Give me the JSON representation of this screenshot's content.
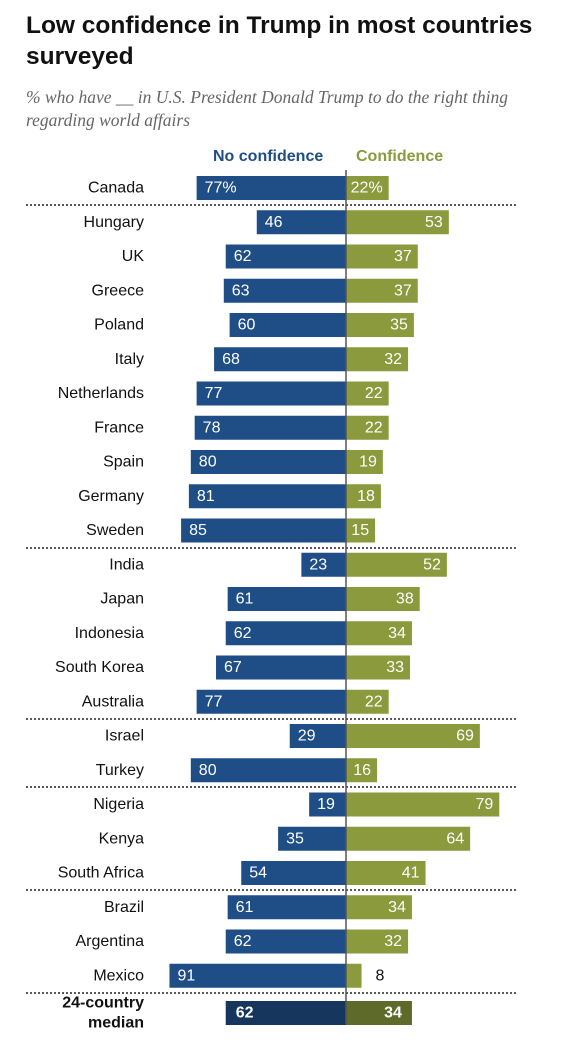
{
  "title": "Low confidence in Trump in most countries surveyed",
  "subtitle": "% who have __ in U.S. President Donald Trump to do the right thing regarding world affairs",
  "colors": {
    "no_confidence": "#1f4e87",
    "confidence": "#8a9a3c",
    "no_confidence_median": "#17365e",
    "confidence_median": "#5e6a2a"
  },
  "chart_data": {
    "type": "bar",
    "orientation": "horizontal-diverging",
    "title": "Low confidence in Trump in most countries surveyed",
    "subtitle": "% who have __ in U.S. President Donald Trump to do the right thing regarding world affairs",
    "series": [
      {
        "name": "No confidence",
        "color": "#1f4e87"
      },
      {
        "name": "Confidence",
        "color": "#8a9a3c"
      }
    ],
    "rows": [
      {
        "country": "Canada",
        "no": 77,
        "yes": 22,
        "no_label": "77%",
        "yes_label": "22%",
        "group_end": true
      },
      {
        "country": "Hungary",
        "no": 46,
        "yes": 53,
        "no_label": "46",
        "yes_label": "53"
      },
      {
        "country": "UK",
        "no": 62,
        "yes": 37,
        "no_label": "62",
        "yes_label": "37"
      },
      {
        "country": "Greece",
        "no": 63,
        "yes": 37,
        "no_label": "63",
        "yes_label": "37"
      },
      {
        "country": "Poland",
        "no": 60,
        "yes": 35,
        "no_label": "60",
        "yes_label": "35"
      },
      {
        "country": "Italy",
        "no": 68,
        "yes": 32,
        "no_label": "68",
        "yes_label": "32"
      },
      {
        "country": "Netherlands",
        "no": 77,
        "yes": 22,
        "no_label": "77",
        "yes_label": "22"
      },
      {
        "country": "France",
        "no": 78,
        "yes": 22,
        "no_label": "78",
        "yes_label": "22"
      },
      {
        "country": "Spain",
        "no": 80,
        "yes": 19,
        "no_label": "80",
        "yes_label": "19"
      },
      {
        "country": "Germany",
        "no": 81,
        "yes": 18,
        "no_label": "81",
        "yes_label": "18"
      },
      {
        "country": "Sweden",
        "no": 85,
        "yes": 15,
        "no_label": "85",
        "yes_label": "15",
        "group_end": true
      },
      {
        "country": "India",
        "no": 23,
        "yes": 52,
        "no_label": "23",
        "yes_label": "52"
      },
      {
        "country": "Japan",
        "no": 61,
        "yes": 38,
        "no_label": "61",
        "yes_label": "38"
      },
      {
        "country": "Indonesia",
        "no": 62,
        "yes": 34,
        "no_label": "62",
        "yes_label": "34"
      },
      {
        "country": "South Korea",
        "no": 67,
        "yes": 33,
        "no_label": "67",
        "yes_label": "33"
      },
      {
        "country": "Australia",
        "no": 77,
        "yes": 22,
        "no_label": "77",
        "yes_label": "22",
        "group_end": true
      },
      {
        "country": "Israel",
        "no": 29,
        "yes": 69,
        "no_label": "29",
        "yes_label": "69"
      },
      {
        "country": "Turkey",
        "no": 80,
        "yes": 16,
        "no_label": "80",
        "yes_label": "16",
        "group_end": true
      },
      {
        "country": "Nigeria",
        "no": 19,
        "yes": 79,
        "no_label": "19",
        "yes_label": "79"
      },
      {
        "country": "Kenya",
        "no": 35,
        "yes": 64,
        "no_label": "35",
        "yes_label": "64"
      },
      {
        "country": "South Africa",
        "no": 54,
        "yes": 41,
        "no_label": "54",
        "yes_label": "41",
        "group_end": true
      },
      {
        "country": "Brazil",
        "no": 61,
        "yes": 34,
        "no_label": "61",
        "yes_label": "34"
      },
      {
        "country": "Argentina",
        "no": 62,
        "yes": 32,
        "no_label": "62",
        "yes_label": "32"
      },
      {
        "country": "Mexico",
        "no": 91,
        "yes": 8,
        "no_label": "91",
        "yes_label": "8",
        "group_end": true
      }
    ],
    "median": {
      "country_line1": "24-country",
      "country_line2": "median",
      "no": 62,
      "yes": 34,
      "no_label": "62",
      "yes_label": "34"
    },
    "grid": false
  }
}
